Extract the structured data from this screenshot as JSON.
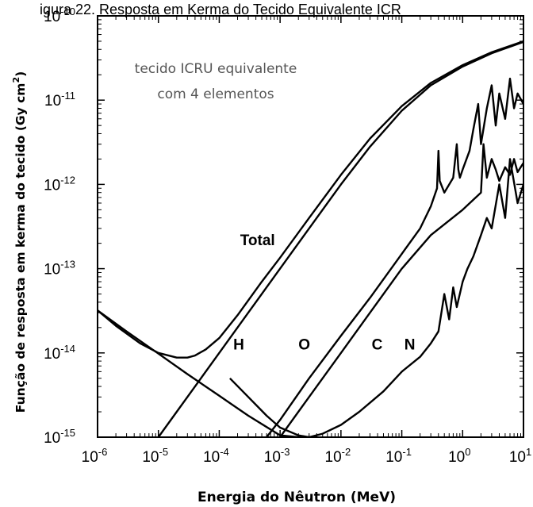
{
  "chart_data": {
    "type": "line",
    "title": "igura 22. Resposta em Kerma do Tecido Equivalente ICR",
    "xlabel": "Energia do Nêutron (MeV)",
    "ylabel": "Função de resposta em kerma do tecido (Gy cm",
    "ylabel_sup": "2",
    "ylabel_tail": ")",
    "xscale": "log",
    "yscale": "log",
    "xlim": [
      1e-06,
      10
    ],
    "ylim": [
      1e-15,
      1e-10
    ],
    "grid": false,
    "x_ticks": [
      {
        "base": "10",
        "exp": "-6"
      },
      {
        "base": "10",
        "exp": "-5"
      },
      {
        "base": "10",
        "exp": "-4"
      },
      {
        "base": "10",
        "exp": "-3"
      },
      {
        "base": "10",
        "exp": "-2"
      },
      {
        "base": "10",
        "exp": "-1"
      },
      {
        "base": "10",
        "exp": "0"
      },
      {
        "base": "10",
        "exp": "1"
      }
    ],
    "y_ticks": [
      {
        "base": "10",
        "exp": "-15"
      },
      {
        "base": "10",
        "exp": "-14"
      },
      {
        "base": "10",
        "exp": "-13"
      },
      {
        "base": "10",
        "exp": "-12"
      },
      {
        "base": "10",
        "exp": "-11"
      },
      {
        "base": "10",
        "exp": "-10"
      }
    ],
    "annotation": {
      "line1": "tecido ICRU equivalente",
      "line2": "com 4 elementos"
    },
    "series": [
      {
        "name": "Total",
        "label_at": [
          0.00022,
          1.9e-13
        ],
        "x": [
          1e-06,
          2e-06,
          5e-06,
          1e-05,
          2e-05,
          3e-05,
          4e-05,
          6e-05,
          0.0001,
          0.0002,
          0.0005,
          0.001,
          0.003,
          0.01,
          0.03,
          0.1,
          0.3,
          1,
          3,
          10
        ],
        "y": [
          3.2e-14,
          2.1e-14,
          1.3e-14,
          1e-14,
          8.8e-15,
          8.8e-15,
          9.3e-15,
          1.1e-14,
          1.5e-14,
          2.8e-14,
          7e-14,
          1.35e-13,
          4e-13,
          1.3e-12,
          3.5e-12,
          8.5e-12,
          1.6e-11,
          2.6e-11,
          3.7e-11,
          5e-11
        ]
      },
      {
        "name": "H",
        "label_at": [
          0.00017,
          1.1e-14
        ],
        "x": [
          1e-05,
          2e-05,
          5e-05,
          0.0001,
          0.0003,
          0.001,
          0.003,
          0.01,
          0.03,
          0.1,
          0.3,
          1,
          3,
          10
        ],
        "y": [
          1e-15,
          2e-15,
          5e-15,
          1e-14,
          3e-14,
          1e-13,
          3e-13,
          1e-12,
          2.8e-12,
          7.5e-12,
          1.5e-11,
          2.5e-11,
          3.6e-11,
          4.9e-11
        ]
      },
      {
        "name": "O",
        "label_at": [
          0.002,
          1.1e-14
        ],
        "x": [
          0.0006,
          0.001,
          0.003,
          0.01,
          0.03,
          0.1,
          0.2,
          0.3,
          0.38,
          0.4,
          0.42,
          0.5,
          0.7,
          0.8,
          0.85,
          0.9,
          1.0,
          1.3,
          1.5,
          1.8,
          2.0,
          2.5,
          3,
          3.5,
          4,
          5,
          6,
          7,
          8,
          10
        ],
        "y": [
          1e-15,
          1.6e-15,
          5e-15,
          1.6e-14,
          4.5e-14,
          1.5e-13,
          3e-13,
          5.5e-13,
          9e-13,
          2.5e-12,
          1.1e-12,
          8e-13,
          1.2e-12,
          3e-12,
          1.5e-12,
          1.2e-12,
          1.5e-12,
          2.5e-12,
          4.5e-12,
          9e-12,
          3e-12,
          8e-12,
          1.5e-11,
          5e-12,
          1.2e-11,
          6e-12,
          1.8e-11,
          8e-12,
          1.2e-11,
          9e-12
        ]
      },
      {
        "name": "C",
        "label_at": [
          0.032,
          1.1e-14
        ],
        "x": [
          0.001,
          0.003,
          0.01,
          0.03,
          0.1,
          0.3,
          1,
          2,
          2.2,
          2.5,
          3,
          3.5,
          4,
          5,
          6,
          7,
          8,
          10
        ],
        "y": [
          1e-15,
          3e-15,
          1e-14,
          3e-14,
          1e-13,
          2.5e-13,
          5e-13,
          8e-13,
          3e-12,
          1.2e-12,
          2e-12,
          1.5e-12,
          1.1e-12,
          1.6e-12,
          1.3e-12,
          2e-12,
          1.4e-12,
          1.8e-12
        ]
      },
      {
        "name": "N",
        "label_at": [
          0.11,
          1.1e-14
        ],
        "x": [
          0.00015,
          0.0003,
          0.0006,
          0.001,
          0.002,
          0.003,
          0.005,
          0.01,
          0.02,
          0.05,
          0.1,
          0.2,
          0.3,
          0.4,
          0.5,
          0.6,
          0.7,
          0.8,
          1.0,
          1.2,
          1.5,
          2,
          2.5,
          3,
          4,
          5,
          6,
          8,
          10
        ],
        "y": [
          5e-15,
          3e-15,
          1.8e-15,
          1.3e-15,
          1.05e-15,
          1e-15,
          1.1e-15,
          1.4e-15,
          2e-15,
          3.5e-15,
          6e-15,
          9e-15,
          1.3e-14,
          1.8e-14,
          5e-14,
          2.5e-14,
          6e-14,
          3.5e-14,
          7e-14,
          1e-13,
          1.4e-13,
          2.5e-13,
          4e-13,
          3e-13,
          1e-12,
          4e-13,
          2e-12,
          6e-13,
          1e-12
        ]
      }
    ],
    "extra_curve": {
      "x": [
        1e-06,
        3e-06,
        1e-05,
        3e-05,
        0.0001,
        0.0003,
        0.001,
        0.002,
        0.003
      ],
      "y": [
        3.2e-14,
        1.8e-14,
        9.8e-15,
        5.6e-15,
        3.1e-15,
        1.8e-15,
        1.05e-15,
        1e-15,
        1e-15
      ]
    },
    "colors": {
      "line": "#000000",
      "annotation": "#555555"
    }
  }
}
